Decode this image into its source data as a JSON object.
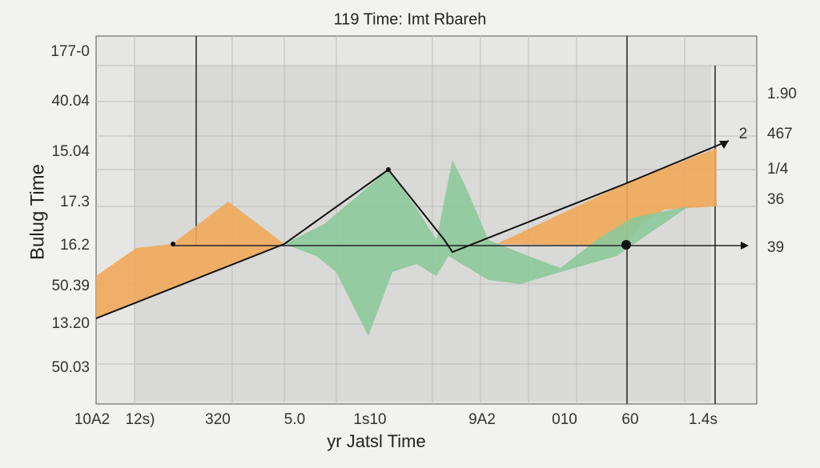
{
  "title": "119 Time: Imt Rbareh",
  "x_label": "yr Jatsl Time",
  "y_label": "Bulug Time",
  "left_labels": [
    "177-0",
    "40.04",
    "15.04",
    "17.3",
    "16.2",
    "50.39",
    "13.20",
    "50.03"
  ],
  "right_labels": [
    "1.90",
    "467",
    "1/4",
    "36",
    "39"
  ],
  "corner_label": "2",
  "bottom_labels": [
    "10A2",
    "12s)",
    "320",
    "5.0",
    "1s10",
    "9A2",
    "010",
    "60",
    "1.4s"
  ]
}
